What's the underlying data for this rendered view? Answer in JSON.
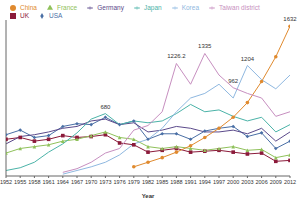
{
  "chart_data": {
    "type": "line",
    "x_label": "Year",
    "x": [
      1952,
      1955,
      1958,
      1961,
      1964,
      1967,
      1970,
      1973,
      1976,
      1979,
      1982,
      1985,
      1988,
      1991,
      1994,
      1997,
      2000,
      2003,
      2006,
      2009,
      2012
    ],
    "xlim": [
      1952,
      2012
    ],
    "xticks": [
      1952,
      1955,
      1958,
      1961,
      1964,
      1967,
      1970,
      1973,
      1976,
      1979,
      1982,
      1985,
      1988,
      1991,
      1994,
      1997,
      2000,
      2003,
      2006,
      2009,
      2012
    ],
    "ylim": [
      0,
      1700
    ],
    "tick_labels": "x",
    "legend": "top-left",
    "series": [
      {
        "name": "USA",
        "color": "#4a6fa5",
        "marker": "diamond",
        "values": [
          450,
          500,
          420,
          440,
          540,
          570,
          560,
          640,
          560,
          600,
          400,
          460,
          460,
          400,
          490,
          520,
          540,
          430,
          470,
          300,
          380
        ]
      },
      {
        "name": "UK",
        "color": "#8b1a3a",
        "marker": "square",
        "values": [
          400,
          420,
          380,
          400,
          440,
          420,
          430,
          450,
          360,
          340,
          260,
          280,
          300,
          260,
          270,
          280,
          260,
          240,
          250,
          160,
          170
        ]
      },
      {
        "name": "France",
        "color": "#8fc15a",
        "marker": "triangle",
        "values": [
          250,
          300,
          320,
          340,
          380,
          400,
          440,
          480,
          420,
          400,
          320,
          300,
          320,
          300,
          280,
          300,
          320,
          280,
          290,
          200,
          230
        ]
      },
      {
        "name": "Germany",
        "color": "#5b4a8b",
        "marker": "none",
        "values": [
          350,
          430,
          450,
          480,
          520,
          540,
          600,
          620,
          560,
          580,
          480,
          500,
          540,
          520,
          480,
          480,
          500,
          460,
          520,
          380,
          480
        ]
      },
      {
        "name": "Japan",
        "color": "#4bb3a8",
        "marker": "none",
        "values": [
          60,
          90,
          150,
          260,
          350,
          470,
          620,
          680,
          560,
          600,
          580,
          600,
          680,
          780,
          700,
          720,
          650,
          600,
          640,
          480,
          560
        ]
      },
      {
        "name": "China",
        "color": "#e08a2e",
        "marker": "circle",
        "values": [
          null,
          null,
          null,
          null,
          null,
          null,
          null,
          null,
          null,
          100,
          150,
          200,
          260,
          330,
          420,
          520,
          640,
          800,
          1030,
          1300,
          1632
        ]
      },
      {
        "name": "Korea",
        "color": "#8fb8e0",
        "marker": "none",
        "values": [
          null,
          null,
          null,
          null,
          20,
          60,
          100,
          150,
          230,
          350,
          400,
          520,
          700,
          850,
          900,
          1000,
          850,
          1204,
          1050,
          950,
          1100
        ]
      },
      {
        "name": "Taiwan district",
        "color": "#c78fc0",
        "marker": "none",
        "values": [
          null,
          null,
          null,
          null,
          40,
          80,
          150,
          250,
          300,
          500,
          550,
          700,
          1226.2,
          1000,
          1335,
          1100,
          962,
          900,
          850,
          650,
          700
        ]
      }
    ],
    "annotations": [
      {
        "x": 1973,
        "value": 680,
        "label": "680"
      },
      {
        "x": 1988,
        "value": 1226.2,
        "label": "1226.2"
      },
      {
        "x": 1994,
        "value": 1335,
        "label": "1335"
      },
      {
        "x": 2000,
        "value": 962,
        "label": "962"
      },
      {
        "x": 2003,
        "value": 1204,
        "label": "1204"
      },
      {
        "x": 2012,
        "value": 1632,
        "label": "1632"
      }
    ]
  }
}
